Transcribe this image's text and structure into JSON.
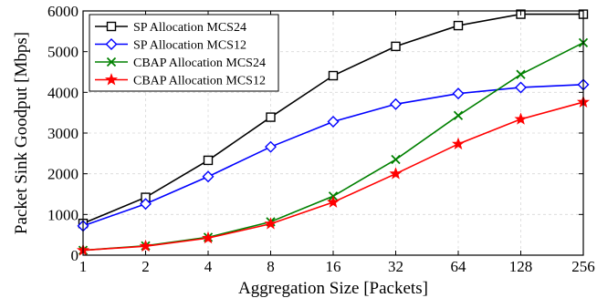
{
  "chart_data": {
    "type": "line",
    "title": "",
    "xlabel": "Aggregation Size [Packets]",
    "ylabel": "Packet Sink Goodput [Mbps]",
    "x": [
      "1",
      "2",
      "4",
      "8",
      "16",
      "32",
      "64",
      "128",
      "256"
    ],
    "x_scale": "log2",
    "ylim": [
      0,
      6000
    ],
    "yticks": [
      "0",
      "1000",
      "2000",
      "3000",
      "4000",
      "5000",
      "6000"
    ],
    "grid": true,
    "legend_position": "top-left",
    "series": [
      {
        "name": "SP Allocation MCS24",
        "color": "#000000",
        "marker": "square",
        "values": [
          780,
          1420,
          2330,
          3390,
          4410,
          5130,
          5640,
          5920,
          5920
        ]
      },
      {
        "name": "SP Allocation MCS12",
        "color": "#0000ff",
        "marker": "diamond",
        "values": [
          720,
          1260,
          1930,
          2660,
          3280,
          3710,
          3970,
          4120,
          4190
        ]
      },
      {
        "name": "CBAP Allocation MCS24",
        "color": "#008000",
        "marker": "x",
        "values": [
          120,
          230,
          440,
          820,
          1450,
          2350,
          3430,
          4440,
          5220
        ]
      },
      {
        "name": "CBAP Allocation MCS12",
        "color": "#ff0000",
        "marker": "star",
        "values": [
          120,
          220,
          420,
          770,
          1300,
          2000,
          2730,
          3340,
          3760
        ]
      }
    ]
  }
}
